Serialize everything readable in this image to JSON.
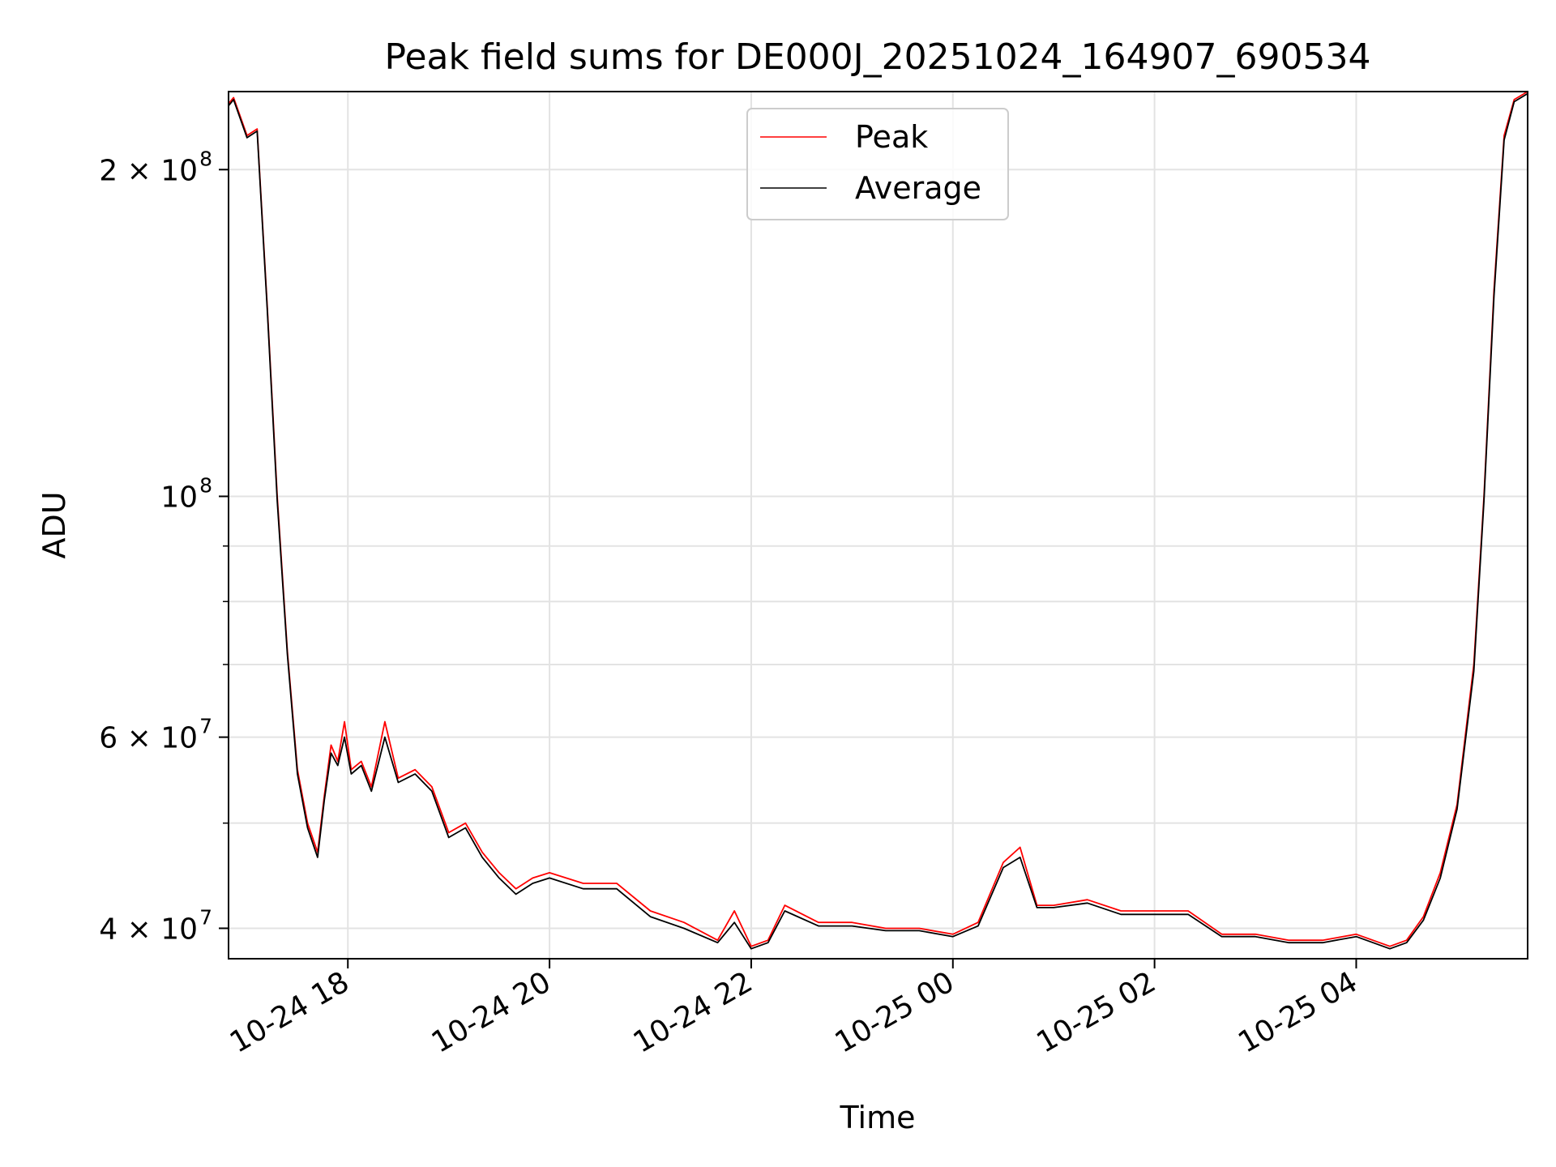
{
  "chart_data": {
    "type": "line",
    "title": "Peak field sums for DE000J_20251024_164907_690534",
    "xlabel": "Time",
    "ylabel": "ADU",
    "yscale": "log",
    "ylim": [
      37500000,
      236000000
    ],
    "xlim": [
      "2025-10-24 16:49",
      "2025-10-25 05:42"
    ],
    "grid": true,
    "legend_position": "top-center",
    "x_ticks": [
      {
        "value": "2025-10-24 18:00",
        "label": "10-24 18"
      },
      {
        "value": "2025-10-24 20:00",
        "label": "10-24 20"
      },
      {
        "value": "2025-10-24 22:00",
        "label": "10-24 22"
      },
      {
        "value": "2025-10-25 00:00",
        "label": "10-25 00"
      },
      {
        "value": "2025-10-25 02:00",
        "label": "10-25 02"
      },
      {
        "value": "2025-10-25 04:00",
        "label": "10-25 04"
      }
    ],
    "y_ticks": [
      {
        "value": 40000000,
        "label": "4 × 10",
        "exp": "7"
      },
      {
        "value": 60000000,
        "label": "6 × 10",
        "exp": "7"
      },
      {
        "value": 100000000,
        "label": "10",
        "exp": "8"
      },
      {
        "value": 200000000,
        "label": "2 × 10",
        "exp": "8"
      }
    ],
    "y_minor_ticks": [
      50000000,
      70000000,
      80000000,
      90000000
    ],
    "series": [
      {
        "name": "Peak",
        "color": "#ff0000",
        "x": [
          "2025-10-24 16:49",
          "2025-10-24 16:52",
          "2025-10-24 17:00",
          "2025-10-24 17:06",
          "2025-10-24 17:12",
          "2025-10-24 17:18",
          "2025-10-24 17:24",
          "2025-10-24 17:30",
          "2025-10-24 17:36",
          "2025-10-24 17:42",
          "2025-10-24 17:46",
          "2025-10-24 17:50",
          "2025-10-24 17:54",
          "2025-10-24 17:58",
          "2025-10-24 18:02",
          "2025-10-24 18:08",
          "2025-10-24 18:14",
          "2025-10-24 18:22",
          "2025-10-24 18:30",
          "2025-10-24 18:40",
          "2025-10-24 18:50",
          "2025-10-24 19:00",
          "2025-10-24 19:10",
          "2025-10-24 19:20",
          "2025-10-24 19:30",
          "2025-10-24 19:40",
          "2025-10-24 19:50",
          "2025-10-24 20:00",
          "2025-10-24 20:20",
          "2025-10-24 20:40",
          "2025-10-24 21:00",
          "2025-10-24 21:20",
          "2025-10-24 21:40",
          "2025-10-24 21:50",
          "2025-10-24 22:00",
          "2025-10-24 22:10",
          "2025-10-24 22:20",
          "2025-10-24 22:40",
          "2025-10-24 23:00",
          "2025-10-24 23:20",
          "2025-10-24 23:40",
          "2025-10-25 00:00",
          "2025-10-25 00:15",
          "2025-10-25 00:30",
          "2025-10-25 00:40",
          "2025-10-25 00:50",
          "2025-10-25 01:00",
          "2025-10-25 01:20",
          "2025-10-25 01:40",
          "2025-10-25 02:00",
          "2025-10-25 02:20",
          "2025-10-25 02:40",
          "2025-10-25 03:00",
          "2025-10-25 03:20",
          "2025-10-25 03:40",
          "2025-10-25 04:00",
          "2025-10-25 04:20",
          "2025-10-25 04:30",
          "2025-10-25 04:40",
          "2025-10-25 04:50",
          "2025-10-25 05:00",
          "2025-10-25 05:10",
          "2025-10-25 05:16",
          "2025-10-25 05:22",
          "2025-10-25 05:28",
          "2025-10-25 05:34",
          "2025-10-25 05:42"
        ],
        "values": [
          230000000,
          233000000,
          215000000,
          218000000,
          150000000,
          100000000,
          72000000,
          56000000,
          50000000,
          47000000,
          53000000,
          59000000,
          57000000,
          62000000,
          56000000,
          57000000,
          54000000,
          62000000,
          55000000,
          56000000,
          54000000,
          49000000,
          50000000,
          47000000,
          45000000,
          43500000,
          44500000,
          45000000,
          44000000,
          44000000,
          41500000,
          40500000,
          39000000,
          41500000,
          38500000,
          39000000,
          42000000,
          40500000,
          40500000,
          40000000,
          40000000,
          39500000,
          40500000,
          46000000,
          47500000,
          42000000,
          42000000,
          42500000,
          41500000,
          41500000,
          41500000,
          39500000,
          39500000,
          39000000,
          39000000,
          39500000,
          38500000,
          39000000,
          41000000,
          45000000,
          52000000,
          70000000,
          100000000,
          155000000,
          215000000,
          232000000,
          236000000
        ]
      },
      {
        "name": "Average",
        "color": "#000000",
        "x": [
          "2025-10-24 16:49",
          "2025-10-24 16:52",
          "2025-10-24 17:00",
          "2025-10-24 17:06",
          "2025-10-24 17:12",
          "2025-10-24 17:18",
          "2025-10-24 17:24",
          "2025-10-24 17:30",
          "2025-10-24 17:36",
          "2025-10-24 17:42",
          "2025-10-24 17:46",
          "2025-10-24 17:50",
          "2025-10-24 17:54",
          "2025-10-24 17:58",
          "2025-10-24 18:02",
          "2025-10-24 18:08",
          "2025-10-24 18:14",
          "2025-10-24 18:22",
          "2025-10-24 18:30",
          "2025-10-24 18:40",
          "2025-10-24 18:50",
          "2025-10-24 19:00",
          "2025-10-24 19:10",
          "2025-10-24 19:20",
          "2025-10-24 19:30",
          "2025-10-24 19:40",
          "2025-10-24 19:50",
          "2025-10-24 20:00",
          "2025-10-24 20:20",
          "2025-10-24 20:40",
          "2025-10-24 21:00",
          "2025-10-24 21:20",
          "2025-10-24 21:40",
          "2025-10-24 21:50",
          "2025-10-24 22:00",
          "2025-10-24 22:10",
          "2025-10-24 22:20",
          "2025-10-24 22:40",
          "2025-10-24 23:00",
          "2025-10-24 23:20",
          "2025-10-24 23:40",
          "2025-10-25 00:00",
          "2025-10-25 00:15",
          "2025-10-25 00:30",
          "2025-10-25 00:40",
          "2025-10-25 00:50",
          "2025-10-25 01:00",
          "2025-10-25 01:20",
          "2025-10-25 01:40",
          "2025-10-25 02:00",
          "2025-10-25 02:20",
          "2025-10-25 02:40",
          "2025-10-25 03:00",
          "2025-10-25 03:20",
          "2025-10-25 03:40",
          "2025-10-25 04:00",
          "2025-10-25 04:20",
          "2025-10-25 04:30",
          "2025-10-25 04:40",
          "2025-10-25 04:50",
          "2025-10-25 05:00",
          "2025-10-25 05:10",
          "2025-10-25 05:16",
          "2025-10-25 05:22",
          "2025-10-25 05:28",
          "2025-10-25 05:34",
          "2025-10-25 05:42"
        ],
        "values": [
          229000000,
          232000000,
          214000000,
          217000000,
          149000000,
          99000000,
          71500000,
          55500000,
          49500000,
          46500000,
          52500000,
          58000000,
          56500000,
          60000000,
          55500000,
          56500000,
          53500000,
          60000000,
          54500000,
          55500000,
          53500000,
          48500000,
          49500000,
          46500000,
          44500000,
          43000000,
          44000000,
          44500000,
          43500000,
          43500000,
          41000000,
          40000000,
          38800000,
          40500000,
          38300000,
          38800000,
          41500000,
          40200000,
          40200000,
          39800000,
          39800000,
          39300000,
          40200000,
          45500000,
          46500000,
          41800000,
          41800000,
          42200000,
          41200000,
          41200000,
          41200000,
          39300000,
          39300000,
          38800000,
          38800000,
          39300000,
          38300000,
          38800000,
          40700000,
          44500000,
          51500000,
          69000000,
          99000000,
          153000000,
          213000000,
          231000000,
          235000000
        ]
      }
    ]
  }
}
